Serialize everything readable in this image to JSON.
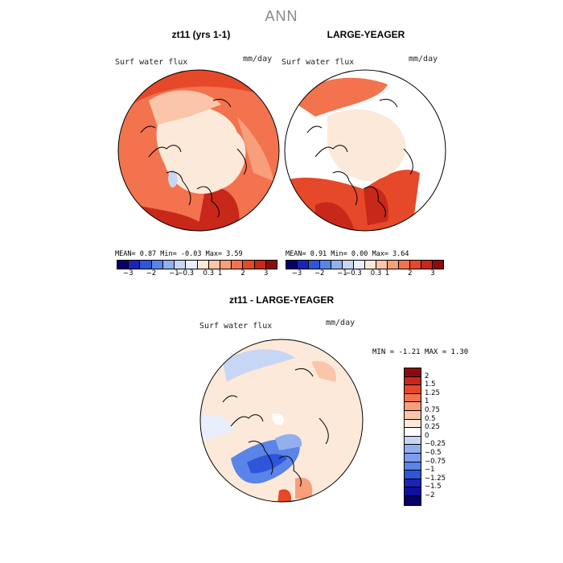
{
  "title": "ANN",
  "panels": [
    {
      "title": "zt11 (yrs 1-1)",
      "var": "Surf water flux",
      "units": "mm/day",
      "stats": {
        "mean": "MEAN=   0.87  Min=  -0.03  Max=   3.59"
      }
    },
    {
      "title": "LARGE-YEAGER",
      "var": "Surf water flux",
      "units": "mm/day",
      "stats": {
        "mean": "MEAN=   0.91  Min=   0.00  Max=   3.64"
      }
    },
    {
      "title": "zt11 - LARGE-YEAGER",
      "var": "Surf water flux",
      "units": "mm/day",
      "stats": {
        "mean": "MIN =   -1.21  MAX =    1.30"
      }
    }
  ],
  "top_colorbar": {
    "colors": [
      "#08006b",
      "#1c24b8",
      "#2f55d8",
      "#5b84e8",
      "#93b0ee",
      "#c7d6f5",
      "#e8eefb",
      "#fde9d9",
      "#fac5a8",
      "#f79e7a",
      "#f2734e",
      "#e6482a",
      "#c8281a",
      "#8c0c0c"
    ],
    "ticks": [
      "−3",
      "−2",
      "−1",
      "−0.3",
      "0.3",
      "1",
      "2",
      "3"
    ]
  },
  "diff_colorbar": {
    "colors": [
      "#8c0c0c",
      "#c8281a",
      "#e6482a",
      "#f2734e",
      "#f79e7a",
      "#fac5a8",
      "#fde9d9",
      "#ffffff",
      "#c7d6f5",
      "#93b0ee",
      "#7b9df0",
      "#5b84e8",
      "#2f55d8",
      "#1c24b8",
      "#100fa0",
      "#08006b"
    ],
    "ticks": [
      "2",
      "1.5",
      "1.25",
      "1",
      "0.75",
      "0.5",
      "0.25",
      "0",
      "−0.25",
      "−0.5",
      "−0.75",
      "−1",
      "−1.25",
      "−1.5",
      "−2"
    ]
  }
}
